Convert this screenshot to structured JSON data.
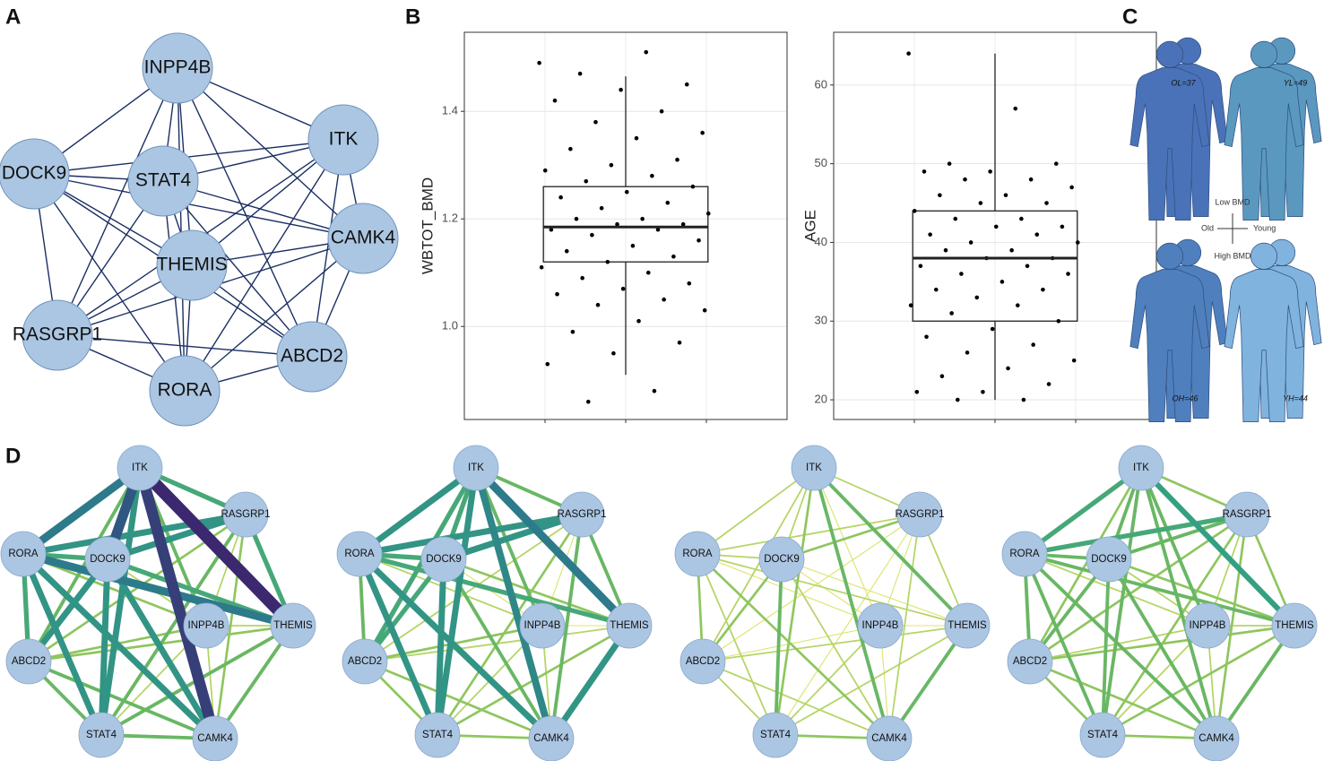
{
  "panel_labels": [
    "A",
    "B",
    "C",
    "D"
  ],
  "network_a": {
    "nodes": [
      "INPP4B",
      "ITK",
      "DOCK9",
      "STAT4",
      "CAMK4",
      "THEMIS",
      "RASGRP1",
      "ABCD2",
      "RORA"
    ]
  },
  "chart_data": [
    {
      "type": "box",
      "ylabel": "WBTOT_BMD",
      "ylim": [
        0.827,
        1.547
      ],
      "yticks": [
        {
          "value": 1,
          "label": "1.0"
        },
        {
          "value": 1.2,
          "label": "1.2"
        },
        {
          "value": 1.4,
          "label": "1.4"
        }
      ],
      "grid": true,
      "color": "#000000",
      "box": {
        "whisker_low": 0.91,
        "q1": 1.12,
        "median": 1.185,
        "q3": 1.26,
        "whisker_high": 1.465
      },
      "points": [
        1.49,
        1.51,
        1.47,
        1.45,
        1.44,
        1.42,
        1.4,
        1.38,
        1.36,
        1.35,
        1.33,
        1.31,
        1.3,
        1.29,
        1.28,
        1.27,
        1.26,
        1.25,
        1.24,
        1.23,
        1.22,
        1.21,
        1.2,
        1.2,
        1.19,
        1.19,
        1.18,
        1.18,
        1.17,
        1.16,
        1.15,
        1.14,
        1.13,
        1.12,
        1.11,
        1.1,
        1.09,
        1.08,
        1.07,
        1.06,
        1.05,
        1.04,
        1.03,
        1.01,
        0.99,
        0.97,
        0.95,
        0.93,
        0.88,
        0.86
      ]
    },
    {
      "type": "box",
      "ylabel": "AGE",
      "ylim": [
        17.5,
        66.7
      ],
      "yticks": [
        20,
        30,
        40,
        50,
        60
      ],
      "grid": true,
      "color": "#000000",
      "box": {
        "whisker_low": 20,
        "q1": 30,
        "median": 38,
        "q3": 44,
        "whisker_high": 64
      },
      "points": [
        64,
        57,
        50,
        50,
        49,
        49,
        48,
        48,
        47,
        46,
        46,
        45,
        45,
        44,
        43,
        43,
        42,
        42,
        41,
        41,
        40,
        40,
        39,
        39,
        38,
        38,
        37,
        37,
        36,
        36,
        35,
        34,
        34,
        33,
        32,
        32,
        31,
        30,
        29,
        28,
        27,
        26,
        25,
        24,
        23,
        22,
        21,
        21,
        20,
        20
      ]
    }
  ],
  "panel_c": {
    "groups": [
      {
        "label": "OL=37",
        "color": "#4a72b8"
      },
      {
        "label": "YL=49",
        "color": "#5a98c0"
      },
      {
        "label": "OH=46",
        "color": "#4f7fbd"
      },
      {
        "label": "YH=44",
        "color": "#80b3de"
      }
    ],
    "axis": {
      "top": "Low BMD",
      "bottom": "High BMD",
      "left": "Old",
      "right": "Young"
    }
  },
  "network_d": {
    "nodes": [
      "ITK",
      "RASGRP1",
      "RORA",
      "DOCK9",
      "INPP4B",
      "THEMIS",
      "ABCD2",
      "STAT4",
      "CAMK4"
    ],
    "networks": [
      {
        "edge_weights": [
          0.6,
          0.8,
          0.9,
          0.5,
          1.0,
          0.5,
          0.7,
          0.95,
          0.7,
          0.7,
          0.3,
          0.6,
          0.4,
          0.5,
          0.4,
          0.6,
          0.4,
          0.8,
          0.6,
          0.7,
          0.7,
          0.3,
          0.6,
          0.7,
          0.7,
          0.7,
          0.3,
          0.4,
          0.3,
          0.3,
          0.4,
          0.5,
          0.5,
          0.5,
          0.5,
          0.5
        ]
      },
      {
        "edge_weights": [
          0.5,
          0.7,
          0.6,
          0.5,
          0.8,
          0.6,
          0.7,
          0.75,
          0.7,
          0.7,
          0.2,
          0.5,
          0.3,
          0.4,
          0.5,
          0.6,
          0.3,
          0.6,
          0.5,
          0.7,
          0.7,
          0.2,
          0.4,
          0.6,
          0.7,
          0.5,
          0.2,
          0.4,
          0.3,
          0.3,
          0.3,
          0.4,
          0.7,
          0.4,
          0.4,
          0.4
        ]
      },
      {
        "edge_weights": [
          0.3,
          0.3,
          0.3,
          0.2,
          0.5,
          0.3,
          0.4,
          0.5,
          0.3,
          0.4,
          0.2,
          0.3,
          0.2,
          0.2,
          0.3,
          0.3,
          0.2,
          0.3,
          0.4,
          0.3,
          0.4,
          0.2,
          0.2,
          0.4,
          0.5,
          0.3,
          0.2,
          0.2,
          0.3,
          0.2,
          0.3,
          0.3,
          0.5,
          0.3,
          0.3,
          0.4
        ]
      },
      {
        "edge_weights": [
          0.4,
          0.6,
          0.5,
          0.5,
          0.65,
          0.4,
          0.5,
          0.5,
          0.6,
          0.5,
          0.3,
          0.4,
          0.4,
          0.4,
          0.4,
          0.5,
          0.3,
          0.5,
          0.5,
          0.5,
          0.5,
          0.3,
          0.4,
          0.5,
          0.5,
          0.5,
          0.3,
          0.3,
          0.3,
          0.3,
          0.4,
          0.4,
          0.5,
          0.4,
          0.4,
          0.4
        ]
      }
    ]
  }
}
